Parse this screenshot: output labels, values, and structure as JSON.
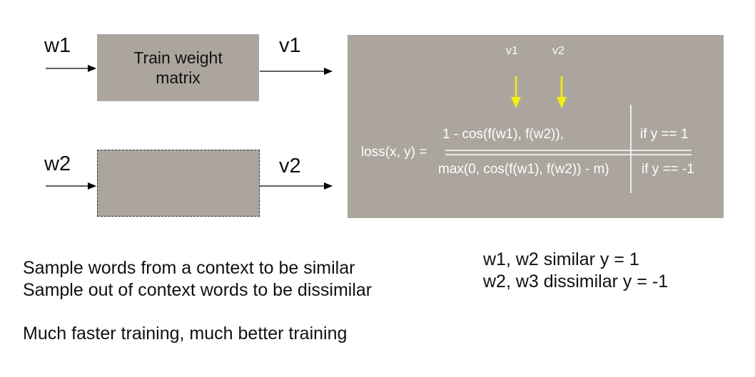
{
  "diagram": {
    "input_top": "w1",
    "input_bottom": "w2",
    "output_top": "v1",
    "output_bottom": "v2",
    "train_box_label": "Train weight\nmatrix"
  },
  "loss_panel": {
    "arrow_label_1": "v1",
    "arrow_label_2": "v2",
    "lhs": "loss(x, y) =",
    "case1_expr": "1 - cos(f(w1), f(w2)),",
    "case1_cond": "if y ==  1",
    "case2_expr": "max(0, cos(f(w1), f(w2)) - m)",
    "case2_cond": "if y == -1",
    "colors": {
      "panel": "#aca59e",
      "arrow": "#f2ee10",
      "text": "#ffffff"
    }
  },
  "notes": {
    "line1": "Sample words from a context to be similar",
    "line2": "Sample out of context words to be dissimilar",
    "line3": "Much faster training, much better training"
  },
  "labels_right": {
    "line1": "w1, w2 similar y = 1",
    "line2": "w2, w3 dissimilar y = -1"
  }
}
